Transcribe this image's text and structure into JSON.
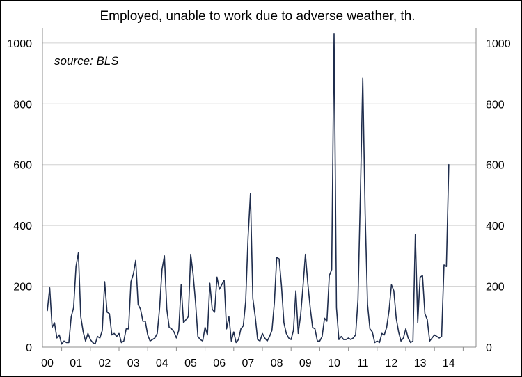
{
  "chart_data": {
    "type": "line",
    "title": "Employed, unable to work due to adverse weather, th.",
    "annotation": "source: BLS",
    "xlabel": "",
    "ylabel": "",
    "ylim": [
      0,
      1050
    ],
    "yticks": [
      0,
      200,
      400,
      600,
      800,
      1000
    ],
    "xtick_labels": [
      "00",
      "01",
      "02",
      "03",
      "04",
      "05",
      "06",
      "07",
      "08",
      "09",
      "10",
      "11",
      "12",
      "13",
      "14"
    ],
    "x_start_year": 2000,
    "grid": "horizontal",
    "legend": "none",
    "series": [
      {
        "color": "#1f2d4d",
        "values": [
          120,
          195,
          65,
          80,
          30,
          40,
          10,
          20,
          15,
          15,
          100,
          130,
          265,
          310,
          100,
          50,
          20,
          45,
          25,
          15,
          10,
          35,
          30,
          55,
          215,
          115,
          110,
          40,
          45,
          35,
          45,
          15,
          20,
          60,
          60,
          215,
          240,
          285,
          140,
          125,
          85,
          85,
          40,
          20,
          25,
          30,
          45,
          130,
          255,
          300,
          125,
          65,
          60,
          50,
          30,
          55,
          205,
          80,
          90,
          100,
          305,
          240,
          150,
          35,
          25,
          20,
          65,
          40,
          210,
          125,
          115,
          230,
          190,
          205,
          220,
          60,
          100,
          20,
          50,
          15,
          25,
          60,
          70,
          150,
          360,
          505,
          160,
          100,
          25,
          20,
          45,
          30,
          20,
          35,
          55,
          145,
          295,
          290,
          200,
          80,
          45,
          30,
          25,
          55,
          185,
          45,
          105,
          200,
          305,
          210,
          130,
          65,
          60,
          20,
          20,
          35,
          95,
          85,
          235,
          255,
          1030,
          130,
          25,
          35,
          25,
          25,
          30,
          25,
          30,
          40,
          155,
          500,
          885,
          440,
          140,
          60,
          50,
          15,
          20,
          15,
          45,
          40,
          65,
          120,
          205,
          185,
          95,
          50,
          20,
          30,
          60,
          30,
          15,
          20,
          370,
          80,
          230,
          235,
          110,
          90,
          20,
          30,
          40,
          35,
          30,
          35,
          270,
          265,
          600
        ]
      }
    ]
  }
}
